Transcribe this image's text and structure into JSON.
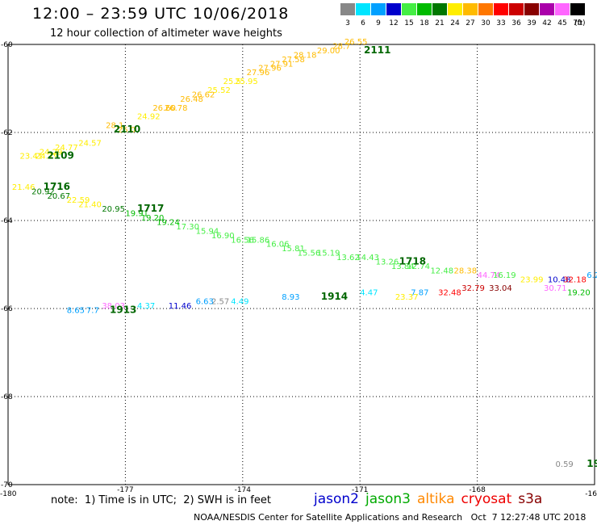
{
  "header": {
    "title": "12:00 – 23:59 UTC 10/06/2018",
    "subtitle": "12 hour collection of altimeter wave heights"
  },
  "legend": {
    "unit": "(ft)",
    "bins": [
      {
        "label": "3",
        "color": "#888888"
      },
      {
        "label": "6",
        "color": "#00e5ff"
      },
      {
        "label": "9",
        "color": "#00a0ff"
      },
      {
        "label": "12",
        "color": "#0000cc"
      },
      {
        "label": "15",
        "color": "#44ee44"
      },
      {
        "label": "18",
        "color": "#00bb00"
      },
      {
        "label": "21",
        "color": "#007700"
      },
      {
        "label": "24",
        "color": "#ffee00"
      },
      {
        "label": "27",
        "color": "#ffbb00"
      },
      {
        "label": "30",
        "color": "#ff7700"
      },
      {
        "label": "33",
        "color": "#ff0000"
      },
      {
        "label": "36",
        "color": "#cc0000"
      },
      {
        "label": "39",
        "color": "#880000"
      },
      {
        "label": "42",
        "color": "#aa00aa"
      },
      {
        "label": "45",
        "color": "#ff66ff"
      },
      {
        "label": "70",
        "color": "#000000"
      }
    ]
  },
  "map": {
    "x_ticks": [
      "-180",
      "-177",
      "-174",
      "-171",
      "-168",
      "-16"
    ],
    "y_ticks": [
      "-60",
      "-62",
      "-64",
      "-66",
      "-68",
      "-70"
    ]
  },
  "chart_data": {
    "type": "scatter",
    "xlabel": "",
    "ylabel": "",
    "xlim": [
      -180,
      -165
    ],
    "ylim": [
      -70,
      -60
    ],
    "hour_labels": [
      {
        "text": "2111",
        "lon": -170.9,
        "lat": -60.2
      },
      {
        "text": "2110",
        "lon": -177.3,
        "lat": -62.0
      },
      {
        "text": "2109",
        "lon": -179.0,
        "lat": -62.6
      },
      {
        "text": "1716",
        "lon": -179.1,
        "lat": -63.3
      },
      {
        "text": "1717",
        "lon": -176.7,
        "lat": -63.8
      },
      {
        "text": "1718",
        "lon": -170.0,
        "lat": -65.0
      },
      {
        "text": "1913",
        "lon": -177.4,
        "lat": -66.1
      },
      {
        "text": "1914",
        "lon": -172.0,
        "lat": -65.8
      },
      {
        "text": "19",
        "lon": -165.2,
        "lat": -69.6
      }
    ],
    "observations": [
      {
        "swh": "26.55",
        "lon": -171.4,
        "lat": -60.0,
        "color": "#ffbb00"
      },
      {
        "swh": "28.7",
        "lon": -171.7,
        "lat": -60.1,
        "color": "#ffbb00"
      },
      {
        "swh": "29.00",
        "lon": -172.1,
        "lat": -60.2,
        "color": "#ffbb00"
      },
      {
        "swh": "28.18",
        "lon": -172.7,
        "lat": -60.3,
        "color": "#ffbb00"
      },
      {
        "swh": "27.58",
        "lon": -173.0,
        "lat": -60.4,
        "color": "#ffbb00"
      },
      {
        "swh": "27.91",
        "lon": -173.3,
        "lat": -60.5,
        "color": "#ffbb00"
      },
      {
        "swh": "27.96",
        "lon": -173.6,
        "lat": -60.6,
        "color": "#ffbb00"
      },
      {
        "swh": "27.96",
        "lon": -173.9,
        "lat": -60.7,
        "color": "#ffbb00"
      },
      {
        "swh": "25.95",
        "lon": -174.2,
        "lat": -60.9,
        "color": "#ffee00"
      },
      {
        "swh": "25.5",
        "lon": -174.5,
        "lat": -60.9,
        "color": "#ffee00"
      },
      {
        "swh": "25.52",
        "lon": -174.9,
        "lat": -61.1,
        "color": "#ffee00"
      },
      {
        "swh": "26.62",
        "lon": -175.3,
        "lat": -61.2,
        "color": "#ffbb00"
      },
      {
        "swh": "26.48",
        "lon": -175.6,
        "lat": -61.3,
        "color": "#ffbb00"
      },
      {
        "swh": "26.78",
        "lon": -176.0,
        "lat": -61.5,
        "color": "#ffbb00"
      },
      {
        "swh": "26.60",
        "lon": -176.3,
        "lat": -61.5,
        "color": "#ffbb00"
      },
      {
        "swh": "24.92",
        "lon": -176.7,
        "lat": -61.7,
        "color": "#ffee00"
      },
      {
        "swh": "26.0",
        "lon": -177.2,
        "lat": -62.0,
        "color": "#ffbb00"
      },
      {
        "swh": "28.1",
        "lon": -177.5,
        "lat": -61.9,
        "color": "#ffbb00"
      },
      {
        "swh": "24.57",
        "lon": -178.2,
        "lat": -62.3,
        "color": "#ffee00"
      },
      {
        "swh": "24.77",
        "lon": -178.8,
        "lat": -62.4,
        "color": "#ffee00"
      },
      {
        "swh": "24.29",
        "lon": -179.2,
        "lat": -62.5,
        "color": "#ffee00"
      },
      {
        "swh": "24.79",
        "lon": -179.3,
        "lat": -62.6,
        "color": "#ffee00"
      },
      {
        "swh": "23.41",
        "lon": -179.7,
        "lat": -62.6,
        "color": "#ffee00"
      },
      {
        "swh": "21.46",
        "lon": -179.9,
        "lat": -63.3,
        "color": "#ffee00"
      },
      {
        "swh": "20.92",
        "lon": -179.4,
        "lat": -63.4,
        "color": "#007700"
      },
      {
        "swh": "20.67",
        "lon": -179.0,
        "lat": -63.5,
        "color": "#007700"
      },
      {
        "swh": "22.59",
        "lon": -178.5,
        "lat": -63.6,
        "color": "#ffee00"
      },
      {
        "swh": "21.40",
        "lon": -178.2,
        "lat": -63.7,
        "color": "#ffee00"
      },
      {
        "swh": "20.95",
        "lon": -177.6,
        "lat": -63.8,
        "color": "#007700"
      },
      {
        "swh": "19.91",
        "lon": -177.0,
        "lat": -63.9,
        "color": "#00bb00"
      },
      {
        "swh": "19.20",
        "lon": -176.6,
        "lat": -64.0,
        "color": "#00bb00"
      },
      {
        "swh": "19.24",
        "lon": -176.2,
        "lat": -64.1,
        "color": "#00bb00"
      },
      {
        "swh": "17.30",
        "lon": -175.7,
        "lat": -64.2,
        "color": "#44ee44"
      },
      {
        "swh": "15.94",
        "lon": -175.2,
        "lat": -64.3,
        "color": "#44ee44"
      },
      {
        "swh": "16.90",
        "lon": -174.8,
        "lat": -64.4,
        "color": "#44ee44"
      },
      {
        "swh": "16.56",
        "lon": -174.3,
        "lat": -64.5,
        "color": "#44ee44"
      },
      {
        "swh": "15.86",
        "lon": -173.9,
        "lat": -64.5,
        "color": "#44ee44"
      },
      {
        "swh": "16.06",
        "lon": -173.4,
        "lat": -64.6,
        "color": "#44ee44"
      },
      {
        "swh": "15.81",
        "lon": -173.0,
        "lat": -64.7,
        "color": "#44ee44"
      },
      {
        "swh": "15.56",
        "lon": -172.6,
        "lat": -64.8,
        "color": "#44ee44"
      },
      {
        "swh": "15.19",
        "lon": -172.1,
        "lat": -64.8,
        "color": "#44ee44"
      },
      {
        "swh": "13.62",
        "lon": -171.6,
        "lat": -64.9,
        "color": "#44ee44"
      },
      {
        "swh": "14.43",
        "lon": -171.1,
        "lat": -64.9,
        "color": "#44ee44"
      },
      {
        "swh": "13.26",
        "lon": -170.6,
        "lat": -65.0,
        "color": "#44ee44"
      },
      {
        "swh": "13.84",
        "lon": -170.2,
        "lat": -65.1,
        "color": "#44ee44"
      },
      {
        "swh": "12.74",
        "lon": -169.8,
        "lat": -65.1,
        "color": "#44ee44"
      },
      {
        "swh": "12.48",
        "lon": -169.2,
        "lat": -65.2,
        "color": "#44ee44"
      },
      {
        "swh": "28.38",
        "lon": -168.6,
        "lat": -65.2,
        "color": "#ffbb00"
      },
      {
        "swh": "44.74",
        "lon": -168.0,
        "lat": -65.3,
        "color": "#ff66ff"
      },
      {
        "swh": "16.19",
        "lon": -167.6,
        "lat": -65.3,
        "color": "#44ee44"
      },
      {
        "swh": "23.99",
        "lon": -166.9,
        "lat": -65.4,
        "color": "#ffee00"
      },
      {
        "swh": "10.48",
        "lon": -166.2,
        "lat": -65.4,
        "color": "#0000cc"
      },
      {
        "swh": "32.18",
        "lon": -165.8,
        "lat": -65.4,
        "color": "#ff0000"
      },
      {
        "swh": "6.2",
        "lon": -165.2,
        "lat": -65.3,
        "color": "#00a0ff"
      },
      {
        "swh": "30.71",
        "lon": -166.3,
        "lat": -65.6,
        "color": "#ff66ff"
      },
      {
        "swh": "19.20",
        "lon": -165.7,
        "lat": -65.7,
        "color": "#00bb00"
      },
      {
        "swh": "33.04",
        "lon": -167.7,
        "lat": -65.6,
        "color": "#880000"
      },
      {
        "swh": "32.79",
        "lon": -168.4,
        "lat": -65.6,
        "color": "#cc0000"
      },
      {
        "swh": "32.48",
        "lon": -169.0,
        "lat": -65.7,
        "color": "#ff0000"
      },
      {
        "swh": "7.87",
        "lon": -169.7,
        "lat": -65.7,
        "color": "#00a0ff"
      },
      {
        "swh": "23.37",
        "lon": -170.1,
        "lat": -65.8,
        "color": "#ffee00"
      },
      {
        "swh": "4.47",
        "lon": -171.0,
        "lat": -65.7,
        "color": "#00e5ff"
      },
      {
        "swh": "8.93",
        "lon": -173.0,
        "lat": -65.8,
        "color": "#00a0ff"
      },
      {
        "swh": "4.49",
        "lon": -174.3,
        "lat": -65.9,
        "color": "#00e5ff"
      },
      {
        "swh": "2.57",
        "lon": -174.8,
        "lat": -65.9,
        "color": "#888888"
      },
      {
        "swh": "6.63",
        "lon": -175.2,
        "lat": -65.9,
        "color": "#00a0ff"
      },
      {
        "swh": "11.46",
        "lon": -175.9,
        "lat": -66.0,
        "color": "#0000cc"
      },
      {
        "swh": "4.37",
        "lon": -176.7,
        "lat": -66.0,
        "color": "#00e5ff"
      },
      {
        "swh": "38.03",
        "lon": -177.6,
        "lat": -66.0,
        "color": "#ff66ff"
      },
      {
        "swh": "8.65",
        "lon": -178.5,
        "lat": -66.1,
        "color": "#00a0ff"
      },
      {
        "swh": "7.7",
        "lon": -178.0,
        "lat": -66.1,
        "color": "#00a0ff"
      },
      {
        "swh": "0.59",
        "lon": -166.0,
        "lat": -69.6,
        "color": "#888888"
      }
    ]
  },
  "footer": {
    "note": "note:  1) Time is in UTC;  2) SWH is in feet",
    "satellites": [
      {
        "name": "jason2",
        "color": "#0000cc"
      },
      {
        "name": "jason3",
        "color": "#00aa00"
      },
      {
        "name": "altika",
        "color": "#ff8800"
      },
      {
        "name": "cryosat",
        "color": "#ee0000"
      },
      {
        "name": "s3a",
        "color": "#880000"
      }
    ],
    "credit": "NOAA/NESDIS Center for Satellite Applications and Research   Oct  7 12:27:48 UTC 2018"
  }
}
